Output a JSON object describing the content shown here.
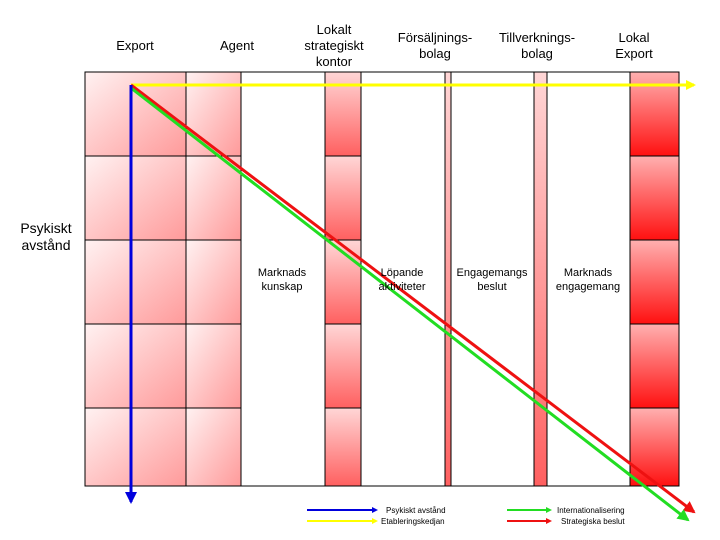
{
  "columns": [
    {
      "label": "Export"
    },
    {
      "label": "Agent"
    },
    {
      "label": "Lokalt\nstrategiskt\nkontor"
    },
    {
      "label": "Försäljnings-\nbolag"
    },
    {
      "label": "Tillverknings-\nbolag"
    },
    {
      "label": "Lokal\nExport"
    }
  ],
  "side_label": "Psykiskt\navstånd",
  "center_labels": [
    {
      "text": "Marknads\nkunskap"
    },
    {
      "text": "Löpande\naktiviteter"
    },
    {
      "text": "Engagemangs\nbeslut"
    },
    {
      "text": "Marknads\nengagemang"
    }
  ],
  "legend": [
    {
      "label": "Psykiskt avstånd",
      "color": "#0000dd"
    },
    {
      "label": "Etableringskedjan",
      "color": "#ffff00"
    },
    {
      "label": "Internationalisering",
      "color": "#22dd22"
    },
    {
      "label": "Strategiska beslut",
      "color": "#ee1111"
    }
  ],
  "colors": {
    "gradient_light": "#ffffff",
    "gradient_dark": "#ff2020",
    "grid_line": "#000000"
  }
}
